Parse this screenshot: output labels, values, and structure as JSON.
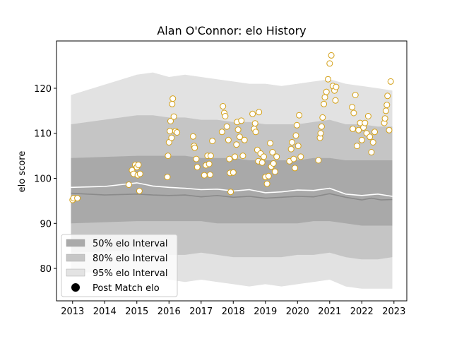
{
  "chart_data": {
    "type": "scatter",
    "title": "Alan O'Connor: elo History",
    "xlabel": "",
    "ylabel": "elo score",
    "xlim": [
      2012.5,
      2023.4
    ],
    "ylim": [
      72.8,
      130.5
    ],
    "x_ticks": [
      2013,
      2014,
      2015,
      2016,
      2017,
      2018,
      2019,
      2020,
      2021,
      2022,
      2023
    ],
    "y_ticks": [
      80,
      90,
      100,
      110,
      120
    ],
    "grid": false,
    "legend_position": "lower-left",
    "legend": [
      {
        "label": "50% elo Interval",
        "color": "#aaaaaa"
      },
      {
        "label": "80% elo Interval",
        "color": "#c6c6c6"
      },
      {
        "label": "95% elo Interval",
        "color": "#e3e3e3"
      },
      {
        "label": "Post Match elo",
        "color": "#000000"
      }
    ],
    "colors": {
      "band_50": "#a9a9a9",
      "band_80": "#c5c5c5",
      "band_95": "#e2e2e2",
      "median_line": "#8a8a8a",
      "mean_line": "#ffffff",
      "point_edge": "#d4a017",
      "point_fill": "#ffffff"
    },
    "band_x": [
      2012.95,
      2015.0,
      2015.5,
      2016.0,
      2016.5,
      2017.0,
      2017.5,
      2018.0,
      2018.5,
      2019.0,
      2019.5,
      2020.0,
      2020.5,
      2021.0,
      2021.5,
      2022.0,
      2022.5,
      2022.95
    ],
    "bands": {
      "p95_low": [
        79.0,
        79.5,
        79.0,
        77.5,
        77.0,
        77.5,
        77.0,
        76.5,
        76.0,
        76.5,
        76.0,
        76.5,
        77.0,
        77.5,
        76.0,
        75.5,
        75.5,
        75.5
      ],
      "p95_high": [
        118.5,
        123.0,
        123.5,
        122.5,
        123.0,
        122.5,
        122.0,
        121.5,
        121.0,
        121.0,
        120.5,
        121.0,
        121.5,
        122.0,
        121.0,
        120.5,
        120.0,
        119.5
      ],
      "p80_low": [
        83.5,
        84.0,
        84.0,
        83.0,
        83.0,
        83.5,
        83.0,
        82.5,
        82.5,
        82.5,
        82.5,
        83.0,
        83.0,
        83.5,
        82.5,
        82.0,
        82.0,
        82.5
      ],
      "p80_high": [
        112.0,
        114.0,
        114.0,
        113.5,
        113.5,
        113.0,
        113.0,
        112.5,
        112.5,
        112.0,
        112.0,
        112.0,
        112.5,
        113.0,
        112.0,
        112.0,
        111.5,
        111.5
      ],
      "p50_low": [
        90.0,
        90.5,
        90.5,
        90.5,
        90.5,
        90.5,
        90.0,
        90.0,
        90.0,
        90.0,
        90.0,
        90.0,
        90.5,
        90.5,
        90.0,
        89.5,
        89.5,
        89.5
      ],
      "p50_high": [
        104.5,
        105.0,
        105.0,
        105.0,
        105.0,
        104.5,
        104.5,
        104.5,
        104.0,
        104.0,
        104.0,
        104.0,
        104.5,
        104.5,
        104.0,
        104.0,
        104.0,
        104.0
      ]
    },
    "median_line": {
      "x": [
        2012.95,
        2014.0,
        2015.0,
        2015.5,
        2016.0,
        2016.5,
        2017.0,
        2017.5,
        2018.0,
        2018.5,
        2019.0,
        2019.5,
        2020.0,
        2020.5,
        2021.0,
        2021.5,
        2022.0,
        2022.3,
        2022.6,
        2022.95
      ],
      "y": [
        96.7,
        96.3,
        96.5,
        96.3,
        96.2,
        96.3,
        95.9,
        96.2,
        95.8,
        96.0,
        95.6,
        95.8,
        96.0,
        95.9,
        96.6,
        95.8,
        95.2,
        95.6,
        95.2,
        95.3
      ]
    },
    "mean_line": {
      "x": [
        2012.95,
        2014.0,
        2015.0,
        2015.5,
        2016.0,
        2016.5,
        2017.0,
        2017.5,
        2018.0,
        2018.5,
        2019.0,
        2019.5,
        2020.0,
        2020.5,
        2021.0,
        2021.5,
        2022.0,
        2022.5,
        2022.95
      ],
      "y": [
        98.0,
        98.2,
        99.0,
        98.3,
        98.0,
        97.8,
        97.5,
        97.6,
        97.2,
        97.5,
        96.8,
        97.0,
        97.4,
        97.3,
        97.8,
        96.5,
        96.2,
        96.5,
        96.0
      ]
    },
    "points": {
      "x": [
        2013.0,
        2013.03,
        2013.15,
        2014.75,
        2014.85,
        2014.9,
        2014.95,
        2015.0,
        2015.03,
        2015.05,
        2015.08,
        2015.1,
        2015.95,
        2015.97,
        2016.0,
        2016.03,
        2016.05,
        2016.08,
        2016.1,
        2016.12,
        2016.15,
        2016.2,
        2016.25,
        2016.75,
        2016.78,
        2016.8,
        2016.85,
        2016.88,
        2017.1,
        2017.15,
        2017.2,
        2017.25,
        2017.28,
        2017.3,
        2017.35,
        2017.65,
        2017.68,
        2017.72,
        2017.75,
        2017.8,
        2017.85,
        2017.88,
        2017.9,
        2017.92,
        2018.0,
        2018.05,
        2018.1,
        2018.12,
        2018.15,
        2018.2,
        2018.25,
        2018.3,
        2018.35,
        2018.6,
        2018.65,
        2018.68,
        2018.7,
        2018.75,
        2018.78,
        2018.8,
        2018.85,
        2018.9,
        2018.95,
        2019.0,
        2019.05,
        2019.1,
        2019.15,
        2019.18,
        2019.22,
        2019.25,
        2019.3,
        2019.35,
        2019.75,
        2019.8,
        2019.83,
        2019.88,
        2019.92,
        2019.95,
        2019.98,
        2020.02,
        2020.05,
        2020.1,
        2020.65,
        2020.7,
        2020.72,
        2020.75,
        2020.78,
        2020.82,
        2020.85,
        2020.9,
        2020.95,
        2021.0,
        2021.05,
        2021.1,
        2021.15,
        2021.18,
        2021.2,
        2021.7,
        2021.72,
        2021.75,
        2021.8,
        2021.85,
        2021.9,
        2021.95,
        2022.0,
        2022.05,
        2022.1,
        2022.15,
        2022.2,
        2022.25,
        2022.3,
        2022.35,
        2022.4,
        2022.7,
        2022.72,
        2022.75,
        2022.78,
        2022.8,
        2022.85,
        2022.9
      ],
      "y": [
        95.2,
        95.6,
        95.6,
        98.6,
        101.8,
        101.0,
        103.0,
        102.5,
        100.7,
        103.0,
        97.2,
        101.0,
        100.3,
        105.0,
        108.0,
        110.5,
        112.7,
        109.0,
        116.5,
        117.7,
        113.7,
        110.5,
        110.2,
        109.3,
        107.2,
        106.8,
        104.3,
        102.5,
        100.7,
        102.9,
        105.0,
        103.2,
        100.8,
        105.0,
        108.3,
        110.3,
        116.0,
        114.5,
        113.8,
        111.5,
        108.5,
        104.3,
        101.2,
        97.0,
        101.3,
        104.8,
        107.5,
        112.5,
        110.8,
        109.2,
        112.8,
        105.0,
        108.5,
        114.3,
        111.0,
        112.2,
        110.3,
        106.3,
        103.8,
        114.7,
        105.5,
        103.5,
        104.8,
        100.3,
        98.8,
        100.5,
        107.8,
        102.6,
        105.8,
        103.3,
        101.5,
        104.8,
        103.8,
        106.5,
        108.0,
        104.3,
        102.3,
        109.5,
        111.8,
        107.2,
        114.0,
        104.8,
        104.0,
        109.0,
        110.0,
        111.5,
        113.5,
        116.5,
        118.0,
        119.2,
        122.0,
        125.5,
        127.3,
        120.5,
        119.5,
        117.3,
        120.3,
        115.8,
        111.0,
        114.5,
        118.5,
        107.2,
        110.7,
        112.3,
        108.5,
        111.3,
        112.3,
        110.0,
        113.8,
        109.2,
        105.8,
        108.0,
        110.3,
        112.3,
        113.3,
        115.0,
        116.3,
        118.3,
        110.7,
        121.5
      ]
    }
  }
}
